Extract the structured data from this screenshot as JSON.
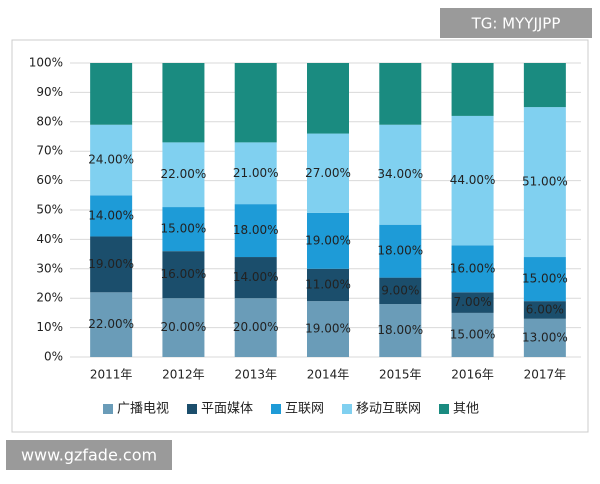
{
  "watermarks": {
    "top": "TG: MYYJJPP",
    "bottom": "www.gzfade.com"
  },
  "chart_data": {
    "type": "stacked_bar",
    "categories": [
      "2011年",
      "2012年",
      "2013年",
      "2014年",
      "2015年",
      "2016年",
      "2017年"
    ],
    "series": [
      {
        "name": "广播电视",
        "color": "#6a9cb8",
        "values": [
          22,
          20,
          20,
          19,
          18,
          15,
          13
        ],
        "value_labels": [
          "22.00%",
          "20.00%",
          "20.00%",
          "19.00%",
          "18.00%",
          "15.00%",
          "13.00%"
        ]
      },
      {
        "name": "平面媒体",
        "color": "#1b4e6c",
        "values": [
          19,
          16,
          14,
          11,
          9,
          7,
          6
        ],
        "value_labels": [
          "19.00%",
          "16.00%",
          "14.00%",
          "11.00%",
          "9.00%",
          "7.00%",
          "6.00%"
        ]
      },
      {
        "name": "互联网",
        "color": "#1e9bd7",
        "values": [
          14,
          15,
          18,
          19,
          18,
          16,
          15
        ],
        "value_labels": [
          "14.00%",
          "15.00%",
          "18.00%",
          "19.00%",
          "18.00%",
          "16.00%",
          "15.00%"
        ]
      },
      {
        "name": "移动互联网",
        "color": "#80d0f0",
        "values": [
          24,
          22,
          21,
          27,
          34,
          44,
          51
        ],
        "value_labels": [
          "24.00%",
          "22.00%",
          "21.00%",
          "27.00%",
          "34.00%",
          "44.00%",
          "51.00%"
        ]
      },
      {
        "name": "其他",
        "color": "#1a8b80",
        "values": [
          21,
          27,
          27,
          24,
          21,
          18,
          15
        ]
      }
    ],
    "ylim": [
      0,
      100
    ],
    "yticks": [
      {
        "value": 0,
        "label": "0%"
      },
      {
        "value": 10,
        "label": "10%"
      },
      {
        "value": 20,
        "label": "20%"
      },
      {
        "value": 30,
        "label": "30%"
      },
      {
        "value": 40,
        "label": "40%"
      },
      {
        "value": 50,
        "label": "50%"
      },
      {
        "value": 60,
        "label": "60%"
      },
      {
        "value": 70,
        "label": "70%"
      },
      {
        "value": 80,
        "label": "80%"
      },
      {
        "value": 90,
        "label": "90%"
      },
      {
        "value": 100,
        "label": "100%"
      }
    ],
    "grid": true,
    "legend": "bottom"
  }
}
